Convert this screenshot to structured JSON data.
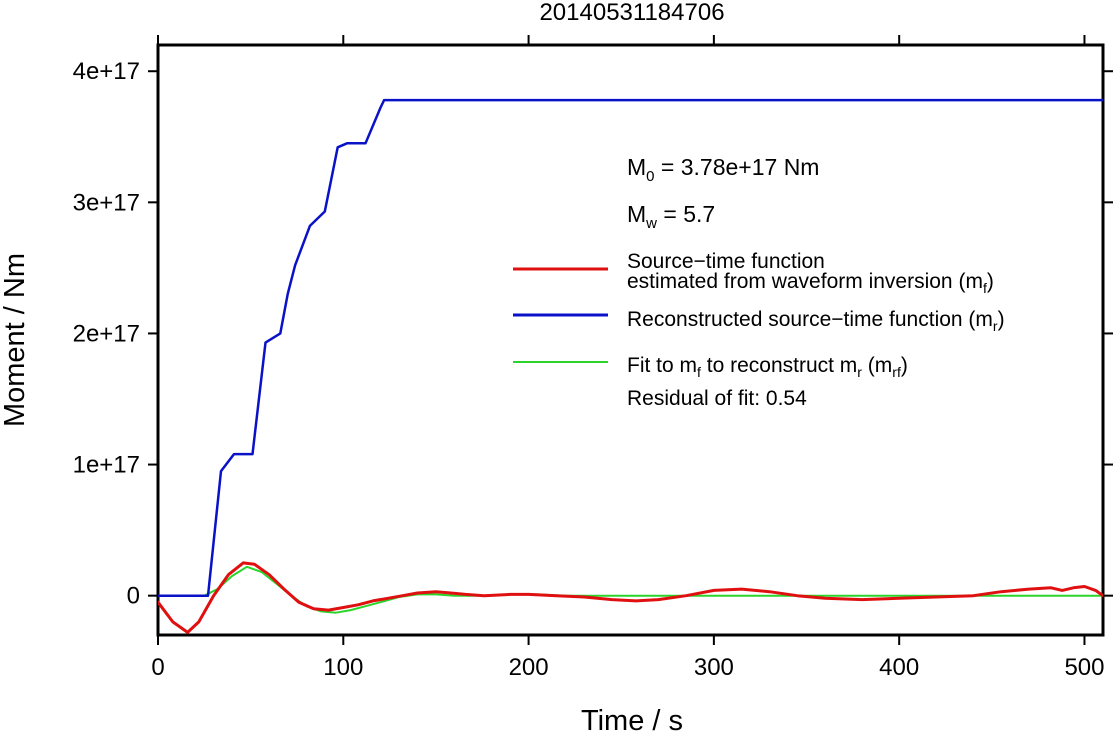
{
  "chart_data": {
    "type": "line",
    "title": "20140531184706",
    "xlabel": "Time / s",
    "ylabel": "Moment / Nm",
    "xlim": [
      0,
      510
    ],
    "ylim": [
      -3e+16,
      4.2e+17
    ],
    "xticks": [
      0,
      100,
      200,
      300,
      400,
      500
    ],
    "xtick_labels": [
      "0",
      "100",
      "200",
      "300",
      "400",
      "500"
    ],
    "yticks": [
      0,
      1e+17,
      2e+17,
      3e+17,
      4e+17
    ],
    "ytick_labels": [
      "0",
      "1e+17",
      "2e+17",
      "3e+17",
      "4e+17"
    ],
    "grid": false,
    "legend_position": "right",
    "annotations": {
      "m0": {
        "prefix": "M",
        "sub": "0",
        "text": " = 3.78e+17 Nm"
      },
      "mw": {
        "prefix": "M",
        "sub": "w",
        "text": " = 5.7"
      },
      "residual": "Residual of fit: 0.54"
    },
    "legend": [
      {
        "line1": "Source−time function",
        "line2": "estimated from waveform inversion (m",
        "line2_sub": "f",
        "line2_end": ")",
        "color": "#e01010"
      },
      {
        "line1": "Reconstructed source−time function (m",
        "line1_sub": "r",
        "line1_end": ")",
        "color": "#0a12c8"
      },
      {
        "line1": "Fit to m",
        "line1_sub": "f",
        "line1_mid": " to reconstruct m",
        "line1_sub2": "r",
        "line1_mid2": " (m",
        "line1_sub3": "rf",
        "line1_end": ")",
        "color": "#2ad42a"
      }
    ],
    "series": [
      {
        "color": "#0a12c8",
        "x": [
          0,
          27,
          34,
          41,
          48,
          51,
          58,
          66,
          70,
          74,
          82,
          90,
          97,
          102,
          112,
          120,
          122,
          510
        ],
        "y": [
          0,
          0,
          9.5e+16,
          1.08e+17,
          1.08e+17,
          1.08e+17,
          1.93e+17,
          2e+17,
          2.3e+17,
          2.52e+17,
          2.82e+17,
          2.93e+17,
          3.42e+17,
          3.45e+17,
          3.45e+17,
          3.72e+17,
          3.78e+17,
          3.78e+17
        ]
      },
      {
        "color": "#e01010",
        "x": [
          0,
          8,
          16,
          22,
          30,
          38,
          46,
          52,
          60,
          68,
          76,
          84,
          92,
          100,
          108,
          116,
          124,
          132,
          140,
          150,
          158,
          166,
          176,
          190,
          200,
          215,
          230,
          245,
          258,
          270,
          285,
          300,
          315,
          330,
          345,
          360,
          380,
          400,
          420,
          440,
          455,
          470,
          482,
          488,
          494,
          500,
          506,
          510
        ],
        "y": [
          -5000000000000000.0,
          -2e+16,
          -2.8e+16,
          -2e+16,
          0,
          1.6e+16,
          2.5e+16,
          2.4e+16,
          1.6e+16,
          5000000000000000.0,
          -5000000000000000.0,
          -1e+16,
          -1.1e+16,
          -9000000000000000.0,
          -7000000000000000.0,
          -4000000000000000.0,
          -2000000000000000.0,
          0,
          2000000000000000.0,
          3000000000000000.0,
          2000000000000000.0,
          1000000000000000.0,
          0,
          1000000000000000.0,
          1000000000000000.0,
          0,
          -1000000000000000.0,
          -3000000000000000.0,
          -4000000000000000.0,
          -3000000000000000.0,
          0,
          4000000000000000.0,
          5000000000000000.0,
          3000000000000000.0,
          0,
          -2000000000000000.0,
          -3000000000000000.0,
          -2000000000000000.0,
          -1000000000000000.0,
          0,
          3000000000000000.0,
          5000000000000000.0,
          6000000000000000.0,
          4000000000000000.0,
          6000000000000000.0,
          7000000000000000.0,
          4000000000000000.0,
          0
        ]
      },
      {
        "color": "#2ad42a",
        "x": [
          0,
          25,
          32,
          40,
          48,
          56,
          64,
          72,
          80,
          88,
          96,
          104,
          112,
          120,
          130,
          140,
          150,
          160,
          175,
          190,
          205,
          220,
          240,
          260,
          280,
          300,
          320,
          340,
          360,
          380,
          400,
          420,
          440,
          460,
          480,
          500,
          510
        ],
        "y": [
          0,
          0,
          5000000000000000.0,
          1.5e+16,
          2.2e+16,
          1.8e+16,
          9000000000000000.0,
          0,
          -8000000000000000.0,
          -1.2e+16,
          -1.3e+16,
          -1.1e+16,
          -8000000000000000.0,
          -5000000000000000.0,
          -1000000000000000.0,
          1000000000000000.0,
          1000000000000000.0,
          0,
          0,
          1000000000000000.0,
          1000000000000000.0,
          0,
          0,
          0,
          0,
          0,
          0,
          0,
          0,
          0,
          0,
          0,
          0,
          0,
          0,
          0,
          0
        ]
      }
    ]
  }
}
